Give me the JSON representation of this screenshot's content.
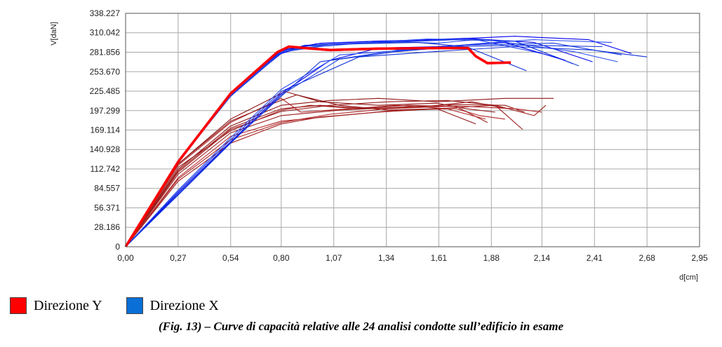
{
  "chart_data": {
    "type": "line",
    "xlabel": "d[cm]",
    "ylabel": "V[daN]",
    "xlim": [
      0,
      2.95
    ],
    "ylim": [
      0,
      338.227
    ],
    "xticks": [
      "0,00",
      "0,27",
      "0,54",
      "0,80",
      "1,07",
      "1,34",
      "1,61",
      "1,88",
      "2,14",
      "2,41",
      "2,68",
      "2,95"
    ],
    "xtick_values": [
      0,
      0.27,
      0.54,
      0.8,
      1.07,
      1.34,
      1.61,
      1.88,
      2.14,
      2.41,
      2.68,
      2.95
    ],
    "yticks": [
      "0",
      "28.186",
      "56.371",
      "84.557",
      "112.742",
      "140.928",
      "169.114",
      "197.299",
      "225.485",
      "253.670",
      "281.856",
      "310.042",
      "338.227"
    ],
    "ytick_values": [
      0,
      28.186,
      56.371,
      84.557,
      112.742,
      140.928,
      169.114,
      197.299,
      225.485,
      253.67,
      281.856,
      310.042,
      338.227
    ],
    "grid": true,
    "legend_placement": "bottom-left",
    "series_groups": [
      {
        "name": "Direzione Y",
        "color": "#ff0000",
        "curves": [
          {
            "highlight": true,
            "x": [
              0,
              0.27,
              0.54,
              0.78,
              0.84,
              0.92,
              1.05,
              1.3,
              1.6,
              1.76,
              1.8,
              1.86,
              1.98
            ],
            "y": [
              0,
              123,
              222,
              282,
              290,
              288,
              285,
              287,
              288,
              288,
              276,
              266,
              267
            ]
          },
          {
            "x": [
              0,
              0.27,
              0.54,
              0.8,
              0.95,
              1.2,
              1.45,
              1.7,
              1.86
            ],
            "y": [
              0,
              115,
              168,
              198,
              205,
              200,
              205,
              203,
              180
            ]
          },
          {
            "x": [
              0,
              0.27,
              0.54,
              0.82,
              1.0,
              1.3,
              1.6,
              1.75,
              1.9
            ],
            "y": [
              0,
              120,
              185,
              225,
              210,
              205,
              208,
              200,
              195
            ]
          },
          {
            "x": [
              0,
              0.27,
              0.54,
              0.8,
              1.1,
              1.4,
              1.7,
              1.82,
              1.95
            ],
            "y": [
              0,
              100,
              160,
              182,
              190,
              198,
              200,
              190,
              185
            ]
          },
          {
            "x": [
              0,
              0.27,
              0.54,
              0.8,
              1.05,
              1.35,
              1.65,
              1.9,
              2.04
            ],
            "y": [
              0,
              108,
              170,
              196,
              205,
              210,
              212,
              205,
              170
            ]
          },
          {
            "x": [
              0,
              0.27,
              0.54,
              0.8,
              1.0,
              1.3,
              1.6,
              1.9,
              2.1,
              2.16
            ],
            "y": [
              0,
              95,
              150,
              178,
              188,
              195,
              200,
              205,
              190,
              205
            ]
          },
          {
            "x": [
              0,
              0.27,
              0.54,
              0.8,
              1.05,
              1.3,
              1.6,
              1.95,
              2.2
            ],
            "y": [
              0,
              112,
              175,
              205,
              212,
              215,
              210,
              215,
              215
            ]
          },
          {
            "x": [
              0,
              0.27,
              0.54,
              0.8,
              0.9,
              1.15,
              1.4,
              1.65,
              1.85
            ],
            "y": [
              0,
              118,
              180,
              215,
              195,
              200,
              205,
              200,
              185
            ]
          },
          {
            "x": [
              0,
              0.27,
              0.54,
              0.8,
              1.1,
              1.4,
              1.7,
              1.95,
              2.05
            ],
            "y": [
              0,
              105,
              165,
              190,
              198,
              202,
              206,
              205,
              195
            ]
          },
          {
            "x": [
              0,
              0.27,
              0.54,
              0.8,
              1.0,
              1.25,
              1.5,
              1.78,
              1.96
            ],
            "y": [
              0,
              110,
              172,
              200,
              205,
              200,
              202,
              210,
              200
            ]
          },
          {
            "x": [
              0,
              0.27,
              0.54,
              0.78,
              0.88,
              1.1,
              1.35,
              1.6,
              1.8
            ],
            "y": [
              0,
              120,
              182,
              210,
              220,
              205,
              198,
              200,
              178
            ]
          },
          {
            "x": [
              0,
              0.27,
              0.54,
              0.8,
              1.05,
              1.35,
              1.7,
              2.0,
              2.14
            ],
            "y": [
              0,
              98,
              155,
              180,
              192,
              200,
              204,
              200,
              195
            ]
          }
        ]
      },
      {
        "name": "Direzione X",
        "color": "#0000ee",
        "curves": [
          {
            "x": [
              0,
              0.27,
              0.54,
              0.8,
              0.9,
              1.2,
              1.5,
              1.7,
              2.0,
              2.3
            ],
            "y": [
              0,
              125,
              220,
              285,
              290,
              295,
              298,
              300,
              298,
              265
            ]
          },
          {
            "x": [
              0,
              0.27,
              0.54,
              0.8,
              0.95,
              1.25,
              1.55,
              1.75,
              2.1,
              2.4
            ],
            "y": [
              0,
              124,
              221,
              280,
              292,
              296,
              300,
              302,
              296,
              268
            ]
          },
          {
            "x": [
              0,
              0.27,
              0.54,
              0.8,
              1.0,
              1.3,
              1.6,
              1.8,
              2.14
            ],
            "y": [
              0,
              122,
              219,
              282,
              295,
              298,
              295,
              300,
              280
            ]
          },
          {
            "x": [
              0,
              0.27,
              0.54,
              0.8,
              0.92,
              1.2,
              1.5,
              1.75,
              2.06
            ],
            "y": [
              0,
              123,
              218,
              281,
              292,
              294,
              296,
              290,
              255
            ]
          },
          {
            "x": [
              0,
              0.27,
              0.54,
              0.8,
              1.05,
              1.35,
              1.7,
              2.0,
              2.33
            ],
            "y": [
              0,
              121,
              220,
              283,
              293,
              296,
              300,
              298,
              262
            ]
          },
          {
            "x": [
              0,
              0.27,
              0.54,
              0.8,
              0.98,
              1.3,
              1.6,
              2.0,
              2.38,
              2.6
            ],
            "y": [
              0,
              124,
              222,
              284,
              294,
              298,
              300,
              305,
              300,
              280
            ]
          },
          {
            "x": [
              0,
              0.27,
              0.54,
              0.8,
              1.0,
              1.25,
              1.55,
              1.85,
              2.3,
              2.53
            ],
            "y": [
              0,
              122,
              219,
              282,
              290,
              296,
              301,
              300,
              283,
              268
            ]
          },
          {
            "x": [
              0,
              0.27,
              0.54,
              0.8,
              1.2,
              1.6,
              2.0,
              2.4,
              2.68
            ],
            "y": [
              0,
              80,
              155,
              225,
              275,
              283,
              290,
              285,
              275
            ]
          },
          {
            "x": [
              0,
              0.27,
              0.54,
              0.8,
              1.1,
              1.4,
              1.75,
              2.2,
              2.55
            ],
            "y": [
              0,
              75,
              150,
              220,
              272,
              285,
              292,
              295,
              278
            ]
          },
          {
            "x": [
              0,
              0.27,
              0.54,
              0.8,
              1.05,
              1.3,
              1.6,
              1.95,
              2.26
            ],
            "y": [
              0,
              78,
              152,
              222,
              270,
              288,
              290,
              296,
              270
            ]
          },
          {
            "x": [
              0,
              0.27,
              0.54,
              0.8,
              1.1,
              1.5,
              1.8,
              2.1,
              2.5
            ],
            "y": [
              0,
              82,
              158,
              228,
              278,
              286,
              294,
              300,
              296
            ]
          },
          {
            "x": [
              0,
              0.27,
              0.54,
              0.8,
              1.0,
              1.4,
              1.7,
              2.05,
              2.45
            ],
            "y": [
              0,
              76,
              151,
              218,
              268,
              283,
              290,
              292,
              290
            ]
          }
        ]
      }
    ]
  },
  "legend": [
    {
      "label": "Direzione Y",
      "color": "#ff0000"
    },
    {
      "label": "Direzione X",
      "color": "#0a6fd6"
    }
  ],
  "caption": "(Fig. 13) – Curve di capacità relative alle 24 analisi condotte sull’edificio in esame"
}
